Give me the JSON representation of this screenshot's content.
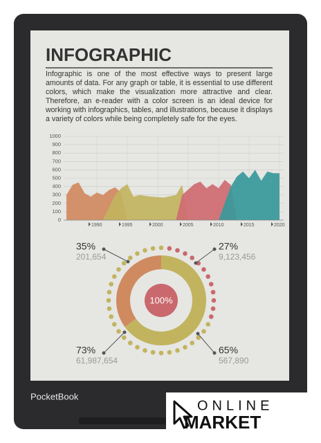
{
  "device": {
    "brand": "PocketBook"
  },
  "screen": {
    "title": "INFOGRAPHIC",
    "text": "Infographic is one of the most effective ways to present large amounts of data. For any graph or table, it is essential to use different colors, which make the visualization more attractive and clear. Therefore, an e-reader with a color screen is an ideal device for working with infographics, tables, and illustrations, because it displays a variety of colors while being completely safe for the eyes.",
    "chart_data": {
      "type": "area",
      "xlim": [
        1985,
        2020
      ],
      "xticks": [
        1990,
        1995,
        2000,
        2005,
        2010,
        2015,
        2020
      ],
      "ylim": [
        0,
        1000
      ],
      "yticks": [
        0,
        100,
        200,
        300,
        400,
        500,
        600,
        700,
        800,
        900,
        1000
      ],
      "grid": true,
      "series": [
        {
          "color": "#d08a60",
          "x": [
            1985,
            1986,
            1987,
            1988,
            1989,
            1990,
            1991,
            1992,
            1993,
            1994,
            1995
          ],
          "values": [
            300,
            420,
            450,
            320,
            280,
            330,
            300,
            360,
            390,
            330,
            0
          ]
        },
        {
          "color": "#c2b45f",
          "x": [
            1991,
            1993,
            1994,
            1995,
            1996,
            1997,
            1999,
            2001,
            2003,
            2004,
            2005
          ],
          "values": [
            0,
            300,
            380,
            430,
            280,
            300,
            280,
            270,
            300,
            420,
            0
          ]
        },
        {
          "color": "#cf6b72",
          "x": [
            2003,
            2004,
            2006,
            2007,
            2008,
            2009,
            2010,
            2011,
            2012,
            2013
          ],
          "values": [
            0,
            300,
            430,
            460,
            380,
            430,
            380,
            480,
            420,
            0
          ]
        },
        {
          "color": "#37999a",
          "x": [
            2010,
            2012,
            2013,
            2014,
            2015,
            2016,
            2017,
            2018,
            2019,
            2020
          ],
          "values": [
            0,
            400,
            520,
            580,
            500,
            600,
            470,
            580,
            560,
            560
          ]
        }
      ]
    },
    "donut": {
      "center_label": "100%",
      "values": [
        35,
        27,
        73,
        65
      ],
      "value_labels": [
        "35%",
        "27%",
        "73%",
        "65%"
      ],
      "counts": [
        "201,654",
        "9,123,456",
        "61,987,654",
        "567,890"
      ],
      "colors": [
        "#d08a60",
        "#c2b45f"
      ]
    }
  },
  "store": {
    "logo_top": "ONLINE",
    "logo_bottom": "MARKET"
  }
}
